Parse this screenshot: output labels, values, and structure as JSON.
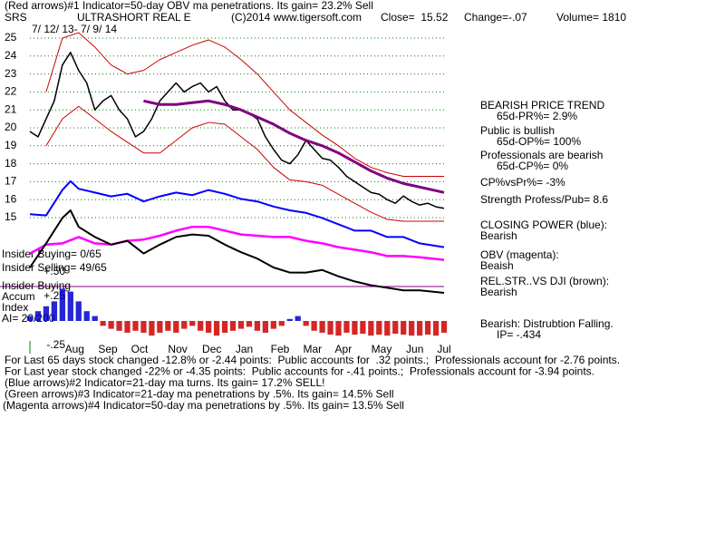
{
  "header": {
    "line1": "(Red arrows)#1 Indicator=50-day OBV ma penetrations. Its gain= 23.2% Sell",
    "symbol": "SRS",
    "name": "ULTRASHORT REAL E",
    "copyright": "(C)2014 www.tigersoft.com",
    "close": "Close=  15.52",
    "change": "Change=-.07",
    "volume": "Volume= 1810",
    "dates": "7/ 12/ 13- 7/ 9/ 14"
  },
  "left_labels": [
    "Insider Buying= 0/65",
    "Insider Selling= 49/65",
    "Insider Buying",
    "Accum",
    "Index",
    "AI= 20/200"
  ],
  "right_labels": [
    "BEARISH PRICE TREND",
    "65d-PR%= 2.9%",
    "Public is bullish",
    "65d-OP%= 100%",
    "Professionals are bearish",
    "65d-CP%= 0%",
    "CP%vsPr%= -3%",
    "Strength Profess/Pub= 8.6",
    "CLOSING POWER (blue):",
    "Bearish",
    "OBV (magenta):",
    "Beaish",
    "REL.STR..VS DJI (brown):",
    "Bearish",
    "Bearish: Distrubtion Falling.",
    "IP= -.434"
  ],
  "footer": [
    "For Last 65 days stock changed -12.8% or -2.44 points:  Public accounts for  .32 points.;  Professionals account for -2.76 points.",
    "For Last year stock changed -22% or -4.35 points:  Public accounts for -.41 points.;  Professionals account for -3.94 points.",
    "(Blue arrows)#2 Indicator=21-day ma turns. Its gain= 17.2% SELL!",
    "(Green arrows)#3 Indicator=21-day ma penetrations by .5%. Its gain= 14.5% Sell",
    "(Magenta arrows)#4 Indicator=50-day ma penetrations by .5%. Its gain= 13.5% Sell"
  ],
  "chart_data": [
    {
      "type": "line",
      "xlim": [
        0,
        51
      ],
      "ylim": [
        15,
        25
      ],
      "yticks": [
        15,
        16,
        17,
        18,
        19,
        20,
        21,
        22,
        23,
        24,
        25
      ],
      "grid": true,
      "grid_color": "#008000",
      "series": [
        {
          "name": "Price",
          "color": "#000000",
          "width": 1.5,
          "x": [
            0,
            1,
            2,
            3,
            4,
            5,
            6,
            7,
            8,
            9,
            10,
            11,
            12,
            13,
            14,
            15,
            16,
            17,
            18,
            19,
            20,
            21,
            22,
            23,
            24,
            25,
            26,
            27,
            28,
            29,
            30,
            31,
            32,
            33,
            34,
            35,
            36,
            37,
            38,
            39,
            40,
            41,
            42,
            43,
            44,
            45,
            46,
            47,
            48,
            49,
            50,
            51
          ],
          "values": [
            19.8,
            19.5,
            20.5,
            21.5,
            23.5,
            24.2,
            23.2,
            22.5,
            21.0,
            21.5,
            21.8,
            21.0,
            20.5,
            19.5,
            19.8,
            20.5,
            21.5,
            22.0,
            22.5,
            22.0,
            22.3,
            22.5,
            22.0,
            22.3,
            21.5,
            21.0,
            21.0,
            20.8,
            20.5,
            19.5,
            18.8,
            18.2,
            18.0,
            18.5,
            19.3,
            18.8,
            18.3,
            18.2,
            17.8,
            17.3,
            17.0,
            16.7,
            16.4,
            16.3,
            16.0,
            15.8,
            16.2,
            15.9,
            15.7,
            15.8,
            15.6,
            15.52
          ]
        },
        {
          "name": "50-day ma",
          "color": "#800080",
          "width": 3,
          "x": [
            14,
            16,
            18,
            20,
            22,
            24,
            26,
            28,
            30,
            32,
            34,
            36,
            38,
            40,
            42,
            44,
            46,
            48,
            51
          ],
          "values": [
            21.5,
            21.3,
            21.3,
            21.4,
            21.5,
            21.3,
            21.0,
            20.6,
            20.2,
            19.7,
            19.3,
            19.0,
            18.6,
            18.1,
            17.6,
            17.2,
            16.9,
            16.7,
            16.4
          ]
        },
        {
          "name": "Upper band",
          "color": "#cc0000",
          "width": 1,
          "x": [
            2,
            4,
            6,
            8,
            10,
            12,
            14,
            16,
            18,
            20,
            22,
            24,
            26,
            28,
            30,
            32,
            34,
            36,
            38,
            40,
            42,
            44,
            46,
            48,
            51
          ],
          "values": [
            22.0,
            25.0,
            25.3,
            24.5,
            23.5,
            23.0,
            23.2,
            23.8,
            24.2,
            24.6,
            24.9,
            24.5,
            23.8,
            23.0,
            22.0,
            21.0,
            20.3,
            19.6,
            19.0,
            18.3,
            17.8,
            17.5,
            17.3,
            17.3,
            17.3
          ]
        },
        {
          "name": "Lower band",
          "color": "#cc0000",
          "width": 1,
          "x": [
            2,
            4,
            6,
            8,
            10,
            12,
            14,
            16,
            18,
            20,
            22,
            24,
            26,
            28,
            30,
            32,
            34,
            36,
            38,
            40,
            42,
            44,
            46,
            48,
            51
          ],
          "values": [
            19.0,
            20.5,
            21.2,
            20.5,
            19.8,
            19.2,
            18.6,
            18.6,
            19.3,
            20.0,
            20.3,
            20.2,
            19.5,
            18.8,
            17.8,
            17.1,
            17.0,
            16.8,
            16.3,
            15.8,
            15.3,
            14.9,
            14.8,
            14.8,
            14.8
          ]
        }
      ]
    },
    {
      "type": "line",
      "xlim": [
        0,
        51
      ],
      "ylim": [
        0,
        100
      ],
      "series": [
        {
          "name": "Closing Power",
          "color": "#0000ff",
          "width": 2,
          "x": [
            0,
            2,
            4,
            5,
            6,
            8,
            10,
            12,
            14,
            16,
            18,
            20,
            22,
            24,
            26,
            28,
            30,
            32,
            34,
            36,
            38,
            40,
            42,
            44,
            46,
            48,
            51
          ],
          "values": [
            67,
            66,
            86,
            93,
            87,
            84,
            81,
            83,
            77,
            81,
            84,
            82,
            86,
            83,
            79,
            77,
            73,
            70,
            68,
            64,
            59,
            54,
            54,
            49,
            49,
            44,
            41
          ]
        },
        {
          "name": "OBV",
          "color": "#ff00ff",
          "width": 2.5,
          "x": [
            0,
            2,
            4,
            6,
            8,
            10,
            12,
            14,
            16,
            18,
            20,
            22,
            24,
            26,
            28,
            30,
            32,
            34,
            36,
            38,
            40,
            42,
            44,
            46,
            48,
            51
          ],
          "values": [
            36,
            43,
            44,
            49,
            44,
            43,
            46,
            47,
            50,
            54,
            57,
            57,
            54,
            51,
            50,
            49,
            49,
            46,
            44,
            41,
            39,
            37,
            34,
            34,
            33,
            31
          ]
        },
        {
          "name": "Rel. Str. vs DJI",
          "color": "#000000",
          "width": 2,
          "x": [
            0,
            2,
            4,
            5,
            6,
            8,
            10,
            12,
            14,
            16,
            18,
            20,
            22,
            24,
            26,
            28,
            30,
            32,
            34,
            36,
            38,
            40,
            42,
            44,
            46,
            48,
            51
          ],
          "values": [
            25,
            44,
            64,
            70,
            57,
            49,
            43,
            46,
            36,
            43,
            49,
            51,
            50,
            43,
            37,
            32,
            25,
            21,
            21,
            23,
            18,
            14,
            11,
            9,
            7,
            7,
            5
          ]
        }
      ]
    },
    {
      "type": "bar",
      "xlim": [
        0,
        51
      ],
      "ylim": [
        -0.25,
        0.5
      ],
      "yticks": [
        {
          "value": 0.5,
          "label": "+.50"
        },
        {
          "value": 0.25,
          "label": "+.25"
        },
        {
          "value": -0.25,
          "label": "-.25"
        }
      ],
      "xticks": [
        {
          "value": 5.5,
          "label": "Aug"
        },
        {
          "value": 9.6,
          "label": "Sep"
        },
        {
          "value": 13.5,
          "label": "Oct"
        },
        {
          "value": 18.2,
          "label": "Nov"
        },
        {
          "value": 22.4,
          "label": "Dec"
        },
        {
          "value": 26.4,
          "label": "Jan"
        },
        {
          "value": 30.8,
          "label": "Feb"
        },
        {
          "value": 34.8,
          "label": "Mar"
        },
        {
          "value": 38.6,
          "label": "Apr"
        },
        {
          "value": 43.3,
          "label": "May"
        },
        {
          "value": 47.4,
          "label": "Jun"
        },
        {
          "value": 51,
          "label": "Jul"
        }
      ],
      "positive_color": "#0000cc",
      "negative_color": "#cc0000",
      "x": [
        0,
        1,
        2,
        3,
        4,
        5,
        6,
        7,
        8,
        9,
        10,
        11,
        12,
        13,
        14,
        15,
        16,
        17,
        18,
        19,
        20,
        21,
        22,
        23,
        24,
        25,
        26,
        27,
        28,
        29,
        30,
        31,
        32,
        33,
        34,
        35,
        36,
        37,
        38,
        39,
        40,
        41,
        42,
        43,
        44,
        45,
        46,
        47,
        48,
        49,
        50,
        51
      ],
      "values": [
        0.05,
        0.1,
        0.15,
        0.2,
        0.33,
        0.3,
        0.2,
        0.1,
        0.05,
        -0.05,
        -0.08,
        -0.1,
        -0.12,
        -0.1,
        -0.12,
        -0.15,
        -0.12,
        -0.1,
        -0.12,
        -0.08,
        -0.05,
        -0.1,
        -0.12,
        -0.15,
        -0.12,
        -0.1,
        -0.08,
        -0.06,
        -0.1,
        -0.12,
        -0.08,
        -0.05,
        0.02,
        0.05,
        -0.05,
        -0.1,
        -0.12,
        -0.14,
        -0.15,
        -0.12,
        -0.14,
        -0.13,
        -0.15,
        -0.14,
        -0.15,
        -0.13,
        -0.14,
        -0.15,
        -0.15,
        -0.14,
        -0.15,
        -0.12
      ]
    }
  ]
}
